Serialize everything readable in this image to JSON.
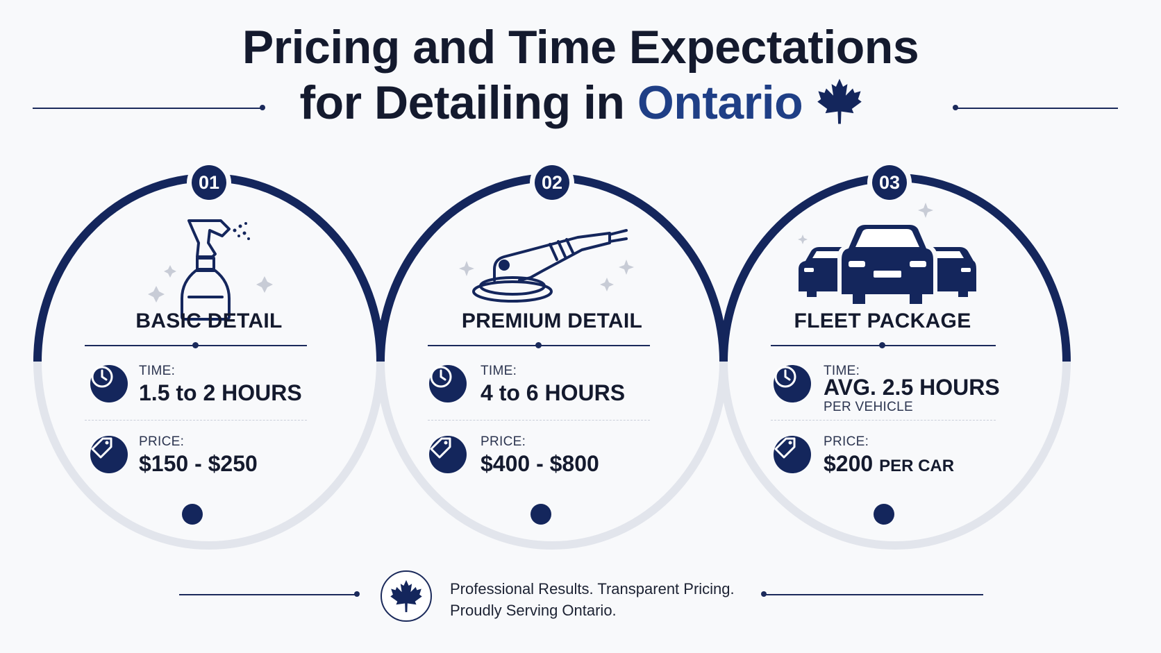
{
  "header": {
    "title_line1": "Pricing and Time Expectations",
    "title_line2_prefix": "for Detailing in",
    "title_line2_highlight": "Ontario",
    "maple_leaf_icon": "maple-leaf-icon"
  },
  "colors": {
    "navy": "#14265c",
    "accent_blue": "#1f3f86",
    "ring_light": "#e2e5ec",
    "background": "#f8f9fb"
  },
  "cards": [
    {
      "number": "01",
      "title": "BASIC DETAIL",
      "icon": "spray-bottle-icon",
      "time_label": "TIME:",
      "time_value": "1.5 to 2 HOURS",
      "price_label": "PRICE:",
      "price_value": "$150 - $250"
    },
    {
      "number": "02",
      "title": "PREMIUM DETAIL",
      "icon": "polisher-icon",
      "time_label": "TIME:",
      "time_value": "4 to 6 HOURS",
      "price_label": "PRICE:",
      "price_value": "$400 - $800"
    },
    {
      "number": "03",
      "title": "FLEET PACKAGE",
      "icon": "cars-icon",
      "time_label": "TIME:",
      "time_value": "AVG. 2.5 HOURS",
      "time_sub": "PER VEHICLE",
      "price_label": "PRICE:",
      "price_value": "$200",
      "price_suffix": "PER CAR"
    }
  ],
  "footer": {
    "line1": "Professional Results. Transparent Pricing.",
    "line2": "Proudly Serving Ontario."
  }
}
